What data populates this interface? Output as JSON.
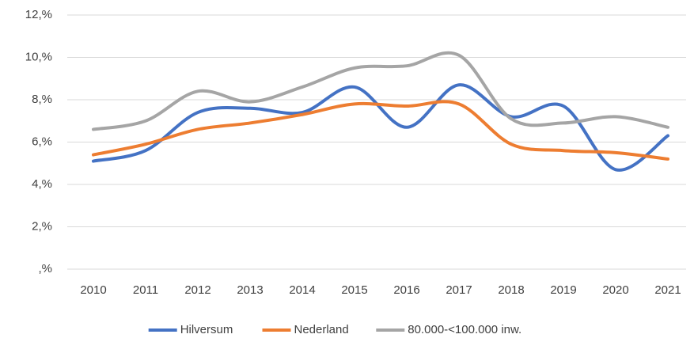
{
  "chart_data": {
    "type": "line",
    "categories": [
      "2010",
      "2011",
      "2012",
      "2013",
      "2014",
      "2015",
      "2016",
      "2017",
      "2018",
      "2019",
      "2020",
      "2021"
    ],
    "series": [
      {
        "name": "Hilversum",
        "color": "#4472c4",
        "values": [
          5.1,
          5.6,
          7.4,
          7.6,
          7.4,
          8.6,
          6.7,
          8.7,
          7.2,
          7.7,
          4.7,
          6.3
        ]
      },
      {
        "name": "Nederland",
        "color": "#ed7d31",
        "values": [
          5.4,
          5.9,
          6.6,
          6.9,
          7.3,
          7.8,
          7.7,
          7.8,
          5.9,
          5.6,
          5.5,
          5.2
        ]
      },
      {
        "name": "80.000-<100.000 inw.",
        "color": "#a5a5a5",
        "values": [
          6.6,
          7.0,
          8.4,
          7.9,
          8.6,
          9.5,
          9.6,
          10.1,
          7.1,
          6.9,
          7.2,
          6.7
        ]
      }
    ],
    "ylim": [
      0,
      12
    ],
    "yticks": [
      {
        "value": 0,
        "label": ",%"
      },
      {
        "value": 2,
        "label": "2,%"
      },
      {
        "value": 4,
        "label": "4,%"
      },
      {
        "value": 6,
        "label": "6,%"
      },
      {
        "value": 8,
        "label": "8,%"
      },
      {
        "value": 10,
        "label": "10,%"
      },
      {
        "value": 12,
        "label": "12,%"
      }
    ],
    "grid": true,
    "smooth": true,
    "legend": "bottom"
  }
}
